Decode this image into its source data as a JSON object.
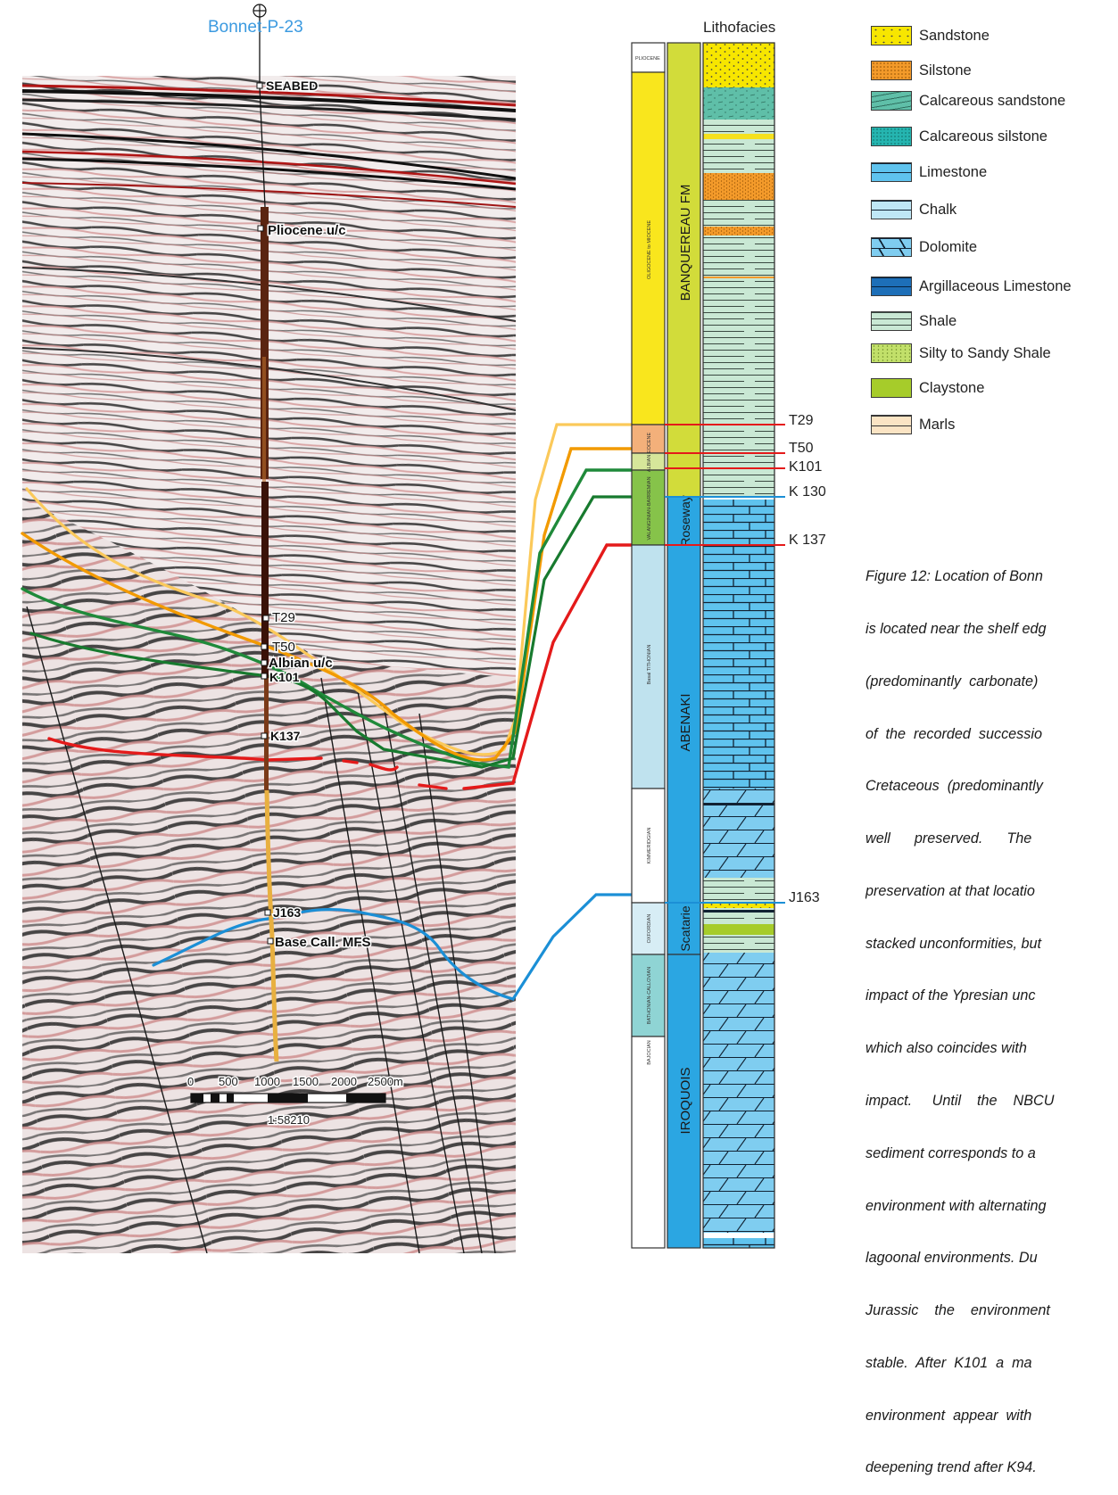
{
  "well": {
    "name": "Bonnet-P-23"
  },
  "seismic_picks": [
    {
      "label": "SEABED"
    },
    {
      "label": "Pliocene u/c"
    },
    {
      "label": "T29"
    },
    {
      "label": "T50"
    },
    {
      "label": "Albian u/c"
    },
    {
      "label": "K101"
    },
    {
      "label": "K137"
    },
    {
      "label": "J163"
    },
    {
      "label": "Base Call. MFS"
    }
  ],
  "scale_bar": {
    "ticks": [
      "0",
      "500",
      "1000",
      "1500",
      "2000",
      "2500m"
    ],
    "ratio": "1:58210"
  },
  "column": {
    "header": "Lithofacies",
    "age_units": [
      "PLIOCENE",
      "OLIGOCENE to MIOCENE",
      "ALBIAN EOCENE",
      "VALANGINIAN-BARREMIAN",
      "Basal TITHONIAN",
      "KIMMERIDGIAN",
      "OXFORDIAN",
      "BATHONIAN-CALLOVIAN",
      "BAJOCIAN"
    ],
    "formations": [
      "BANQUEREAU FM",
      "Roseway",
      "ABENAKI",
      "Scatarie",
      "IROQUOIS"
    ]
  },
  "horizons": [
    {
      "name": "T29",
      "color": "#e41a1a"
    },
    {
      "name": "T50",
      "color": "#e41a1a"
    },
    {
      "name": "K101",
      "color": "#e41a1a"
    },
    {
      "name": "K 130",
      "color": "#1b8fd6"
    },
    {
      "name": "K 137",
      "color": "#e41a1a"
    },
    {
      "name": "J163",
      "color": "#1b8fd6"
    }
  ],
  "legend": [
    {
      "label": "Sandstone",
      "icon": "sandstone-swatch",
      "color": "#f7e600"
    },
    {
      "label": "Silstone",
      "icon": "siltstone-swatch",
      "color": "#f39a2a"
    },
    {
      "label": "Calcareous sandstone",
      "icon": "calcareous-sandstone-swatch",
      "color": "#5fbfa8"
    },
    {
      "label": "Calcareous silstone",
      "icon": "calcareous-siltstone-swatch",
      "color": "#25b5b0"
    },
    {
      "label": "Limestone",
      "icon": "limestone-swatch",
      "color": "#5fc3ee"
    },
    {
      "label": "Chalk",
      "icon": "chalk-swatch",
      "color": "#bfe7f6"
    },
    {
      "label": "Dolomite",
      "icon": "dolomite-swatch",
      "color": "#7fcdf0"
    },
    {
      "label": "Argillaceous Limestone",
      "icon": "argillaceous-limestone-swatch",
      "color": "#1d6fb8"
    },
    {
      "label": "Shale",
      "icon": "shale-swatch",
      "color": "#c9e8d4"
    },
    {
      "label": "Silty to Sandy Shale",
      "icon": "silty-sandy-shale-swatch",
      "color": "#c2e06a"
    },
    {
      "label": "Claystone",
      "icon": "claystone-swatch",
      "color": "#a6cc2a"
    },
    {
      "label": "Marls",
      "icon": "marls-swatch",
      "color": "#fbe4c4"
    }
  ],
  "caption": [
    "Figure 12: Location of Bonn",
    "is located near the shelf edg",
    "(predominantly  carbonate)",
    "of  the  recorded  successio",
    "Cretaceous  (predominantly",
    "well      preserved.      The",
    "preservation at that locatio",
    "stacked unconformities, but",
    "impact of the Ypresian unc",
    "which also coincides with",
    "impact.     Until    the    NBCU",
    "sediment corresponds to a",
    "environment with alternating",
    "lagoonal environments. Du",
    "Jurassic    the    environment",
    "stable.  After  K101  a  ma",
    "environment  appear  with",
    "deepening trend after K94."
  ]
}
